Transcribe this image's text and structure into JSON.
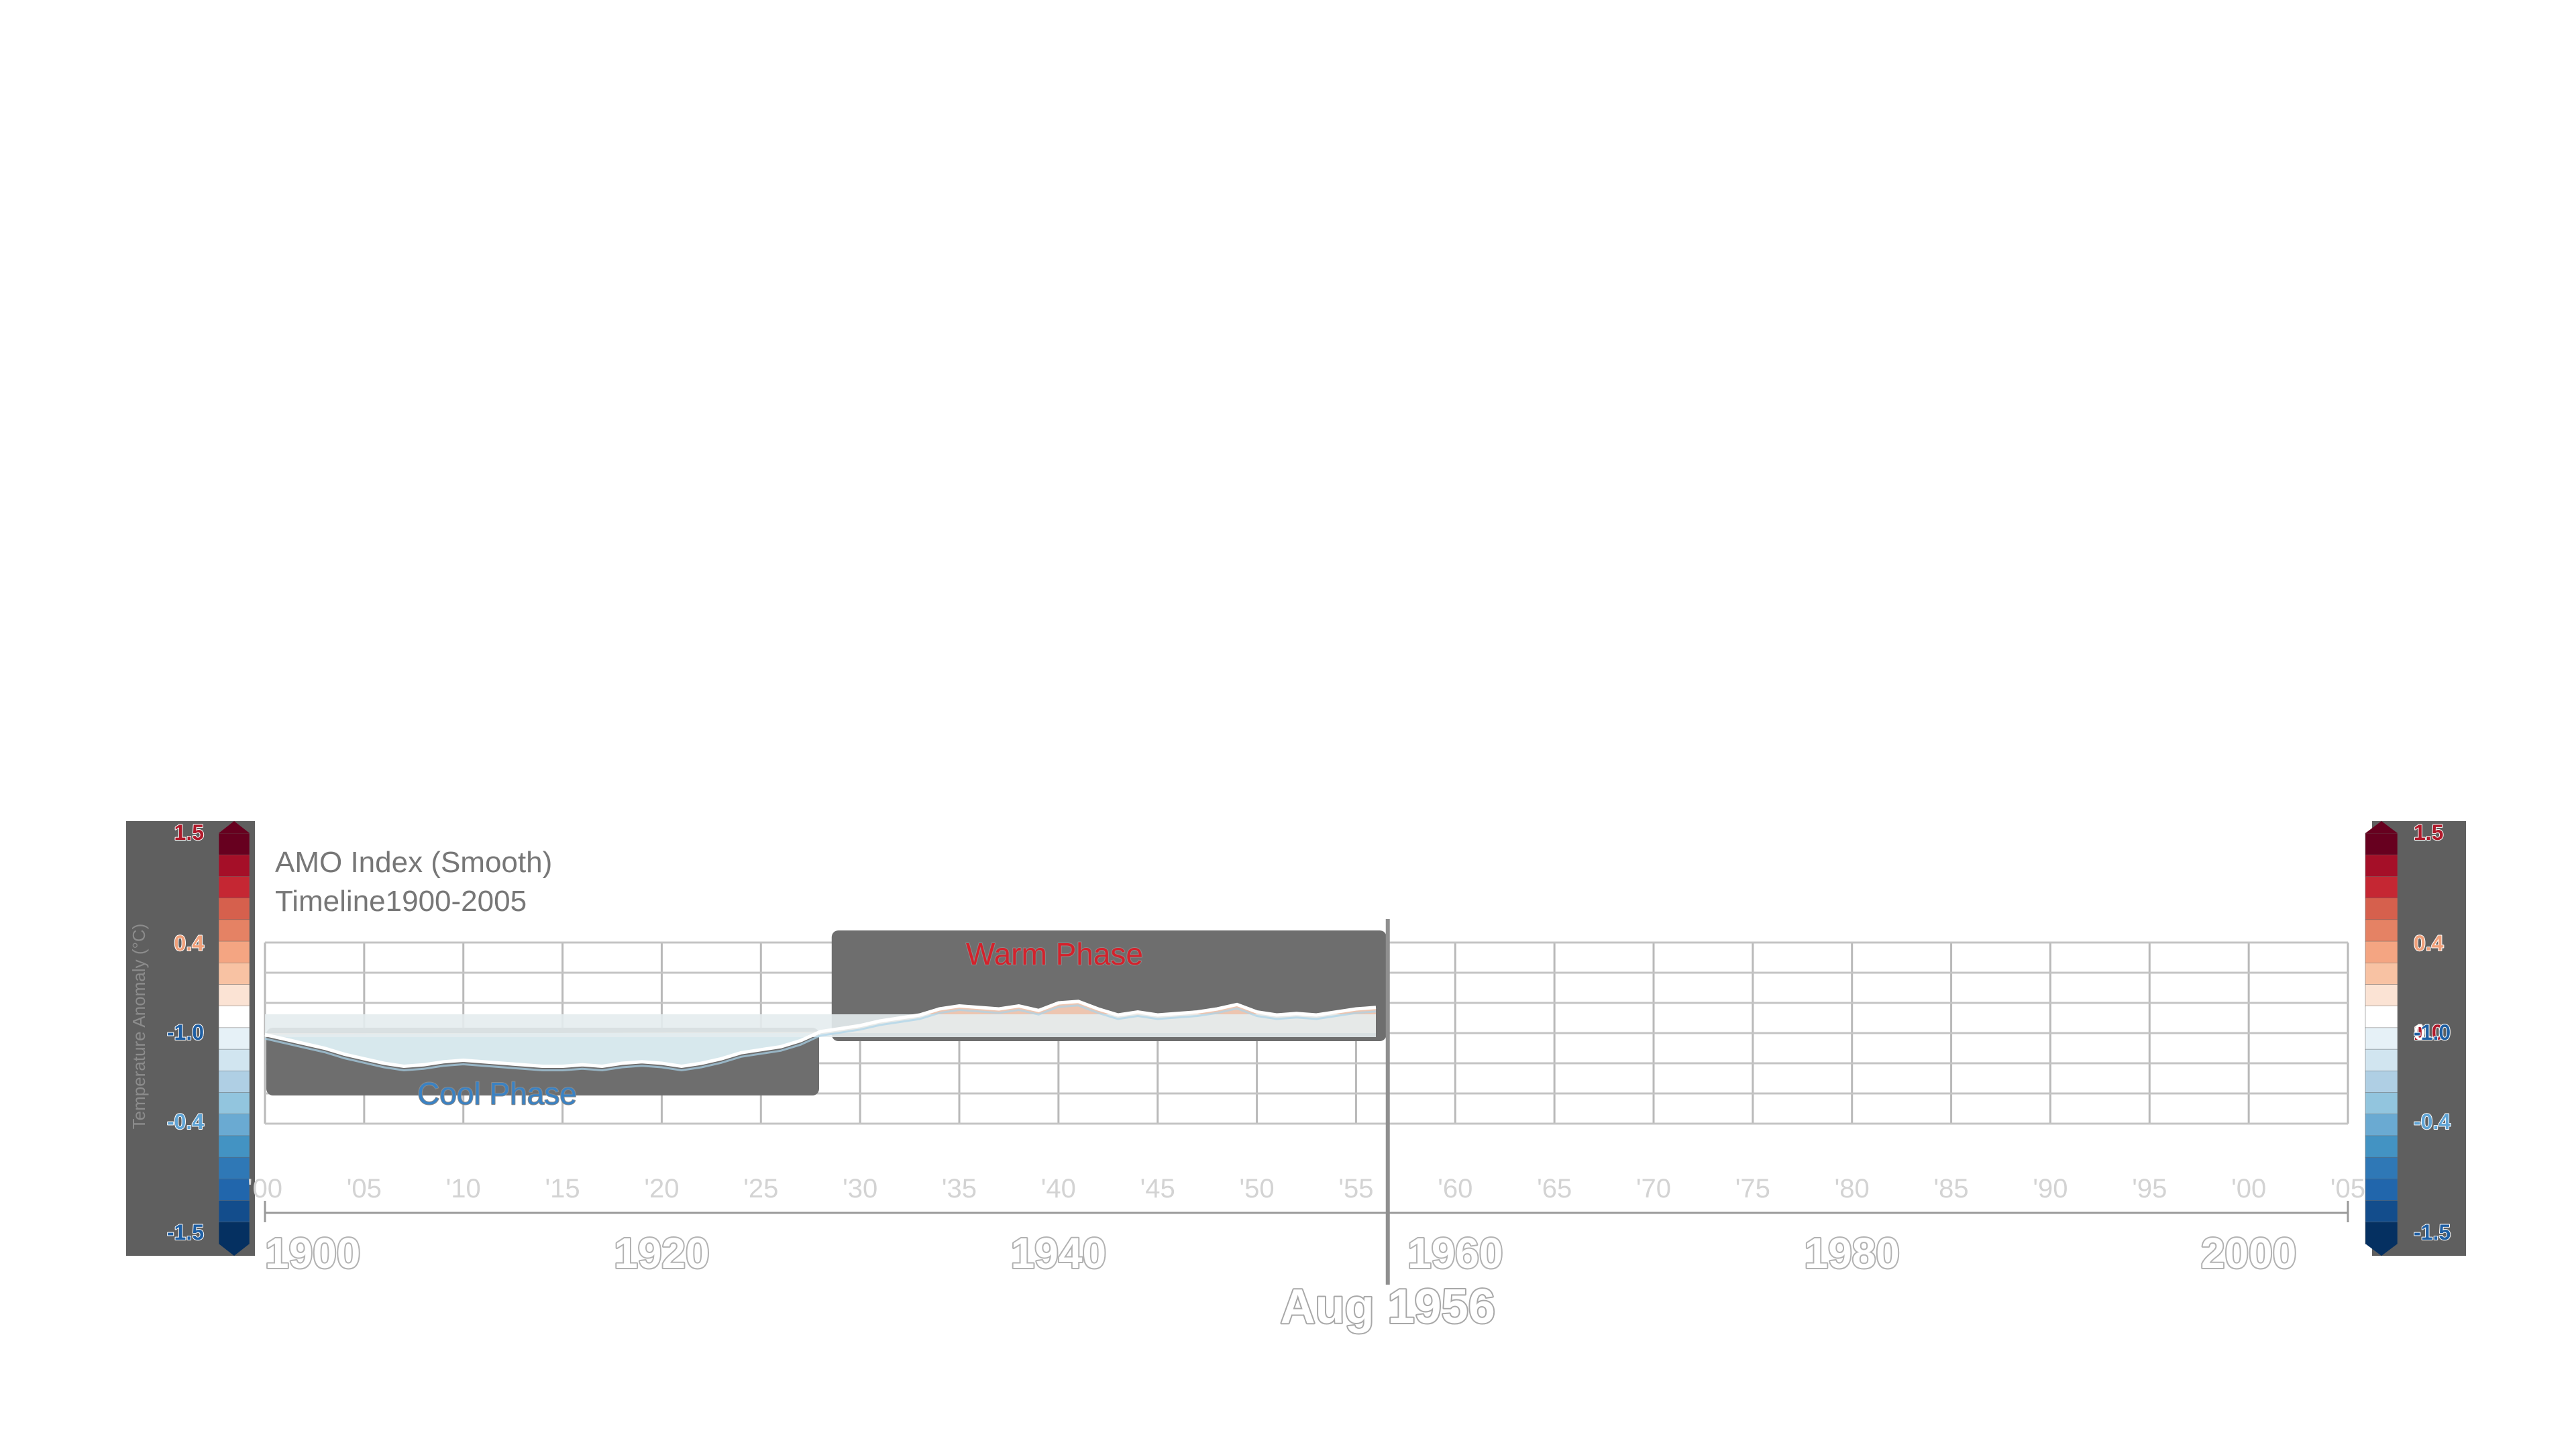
{
  "chart_data": {
    "type": "area",
    "title": "AMO Index (Smooth)",
    "subtitle": "Timeline1900-2005",
    "ylabel": "Temperature Anomaly (°C)",
    "xlim": [
      1900,
      2005
    ],
    "ylim": [
      -0.6,
      0.6
    ],
    "grid": true,
    "cursor_label": "Aug 1956",
    "cursor_year": 1956.6,
    "major_ticks": [
      {
        "year": 1900,
        "label": "1900"
      },
      {
        "year": 1920,
        "label": "1920"
      },
      {
        "year": 1940,
        "label": "1940"
      },
      {
        "year": 1960,
        "label": "1960"
      },
      {
        "year": 1980,
        "label": "1980"
      },
      {
        "year": 2000,
        "label": "2000"
      }
    ],
    "minor_ticks": [
      {
        "year": 1900,
        "label": "'00"
      },
      {
        "year": 1905,
        "label": "'05"
      },
      {
        "year": 1910,
        "label": "'10"
      },
      {
        "year": 1915,
        "label": "'15"
      },
      {
        "year": 1920,
        "label": "'20"
      },
      {
        "year": 1925,
        "label": "'25"
      },
      {
        "year": 1930,
        "label": "'30"
      },
      {
        "year": 1935,
        "label": "'35"
      },
      {
        "year": 1940,
        "label": "'40"
      },
      {
        "year": 1945,
        "label": "'45"
      },
      {
        "year": 1950,
        "label": "'50"
      },
      {
        "year": 1955,
        "label": "'55"
      },
      {
        "year": 1960,
        "label": "'60"
      },
      {
        "year": 1965,
        "label": "'65"
      },
      {
        "year": 1970,
        "label": "'70"
      },
      {
        "year": 1975,
        "label": "'75"
      },
      {
        "year": 1980,
        "label": "'80"
      },
      {
        "year": 1985,
        "label": "'85"
      },
      {
        "year": 1990,
        "label": "'90"
      },
      {
        "year": 1995,
        "label": "'95"
      },
      {
        "year": 2000,
        "label": "'00"
      },
      {
        "year": 2005,
        "label": "'05"
      }
    ],
    "phases": [
      {
        "name": "Cool Phase",
        "start": 1900,
        "end": 1928,
        "color": "#3a82c4"
      },
      {
        "name": "Warm Phase",
        "start": 1928.5,
        "end": 1956.6,
        "color": "#d4222c"
      }
    ],
    "series": [
      {
        "x": [
          1900,
          1901,
          1902,
          1903,
          1904,
          1905,
          1906,
          1907,
          1908,
          1909,
          1910,
          1911,
          1912,
          1913,
          1914,
          1915,
          1916,
          1917,
          1918,
          1919,
          1920,
          1921,
          1922,
          1923,
          1924,
          1925,
          1926,
          1927,
          1928,
          1929,
          1930,
          1931,
          1932,
          1933,
          1934,
          1935,
          1936,
          1937,
          1938,
          1939,
          1940,
          1941,
          1942,
          1943,
          1944,
          1945,
          1946,
          1947,
          1948,
          1949,
          1950,
          1951,
          1952,
          1953,
          1954,
          1955,
          1956
        ],
        "values": [
          -0.01,
          -0.04,
          -0.07,
          -0.1,
          -0.14,
          -0.17,
          -0.2,
          -0.22,
          -0.21,
          -0.19,
          -0.18,
          -0.19,
          -0.2,
          -0.21,
          -0.22,
          -0.22,
          -0.21,
          -0.22,
          -0.2,
          -0.19,
          -0.2,
          -0.22,
          -0.2,
          -0.17,
          -0.13,
          -0.11,
          -0.09,
          -0.05,
          0.01,
          0.03,
          0.05,
          0.08,
          0.1,
          0.12,
          0.16,
          0.18,
          0.17,
          0.16,
          0.18,
          0.15,
          0.2,
          0.21,
          0.16,
          0.12,
          0.14,
          0.12,
          0.13,
          0.14,
          0.16,
          0.19,
          0.14,
          0.12,
          0.13,
          0.12,
          0.14,
          0.16,
          0.17
        ]
      }
    ],
    "colorbar": {
      "ticks": [
        {
          "value": 1.5,
          "label": "1.5"
        },
        {
          "value": 1.0,
          "label": "1.0"
        },
        {
          "value": 0.4,
          "label": "0.4"
        },
        {
          "value": 0,
          "label": "0"
        },
        {
          "value": -0.4,
          "label": "-0.4"
        },
        {
          "value": -1.0,
          "label": "-1.0"
        },
        {
          "value": -1.5,
          "label": "-1.5"
        }
      ],
      "colors": [
        "#67001f",
        "#a50f28",
        "#c52733",
        "#d6604d",
        "#e58264",
        "#f4a582",
        "#f8c2a3",
        "#fbe3d4",
        "#ffffff",
        "#e6f1f7",
        "#d1e5f0",
        "#afcfe4",
        "#92c5de",
        "#6aaad2",
        "#4393c3",
        "#2f78b6",
        "#2166ac",
        "#134d8c",
        "#053061"
      ]
    }
  }
}
